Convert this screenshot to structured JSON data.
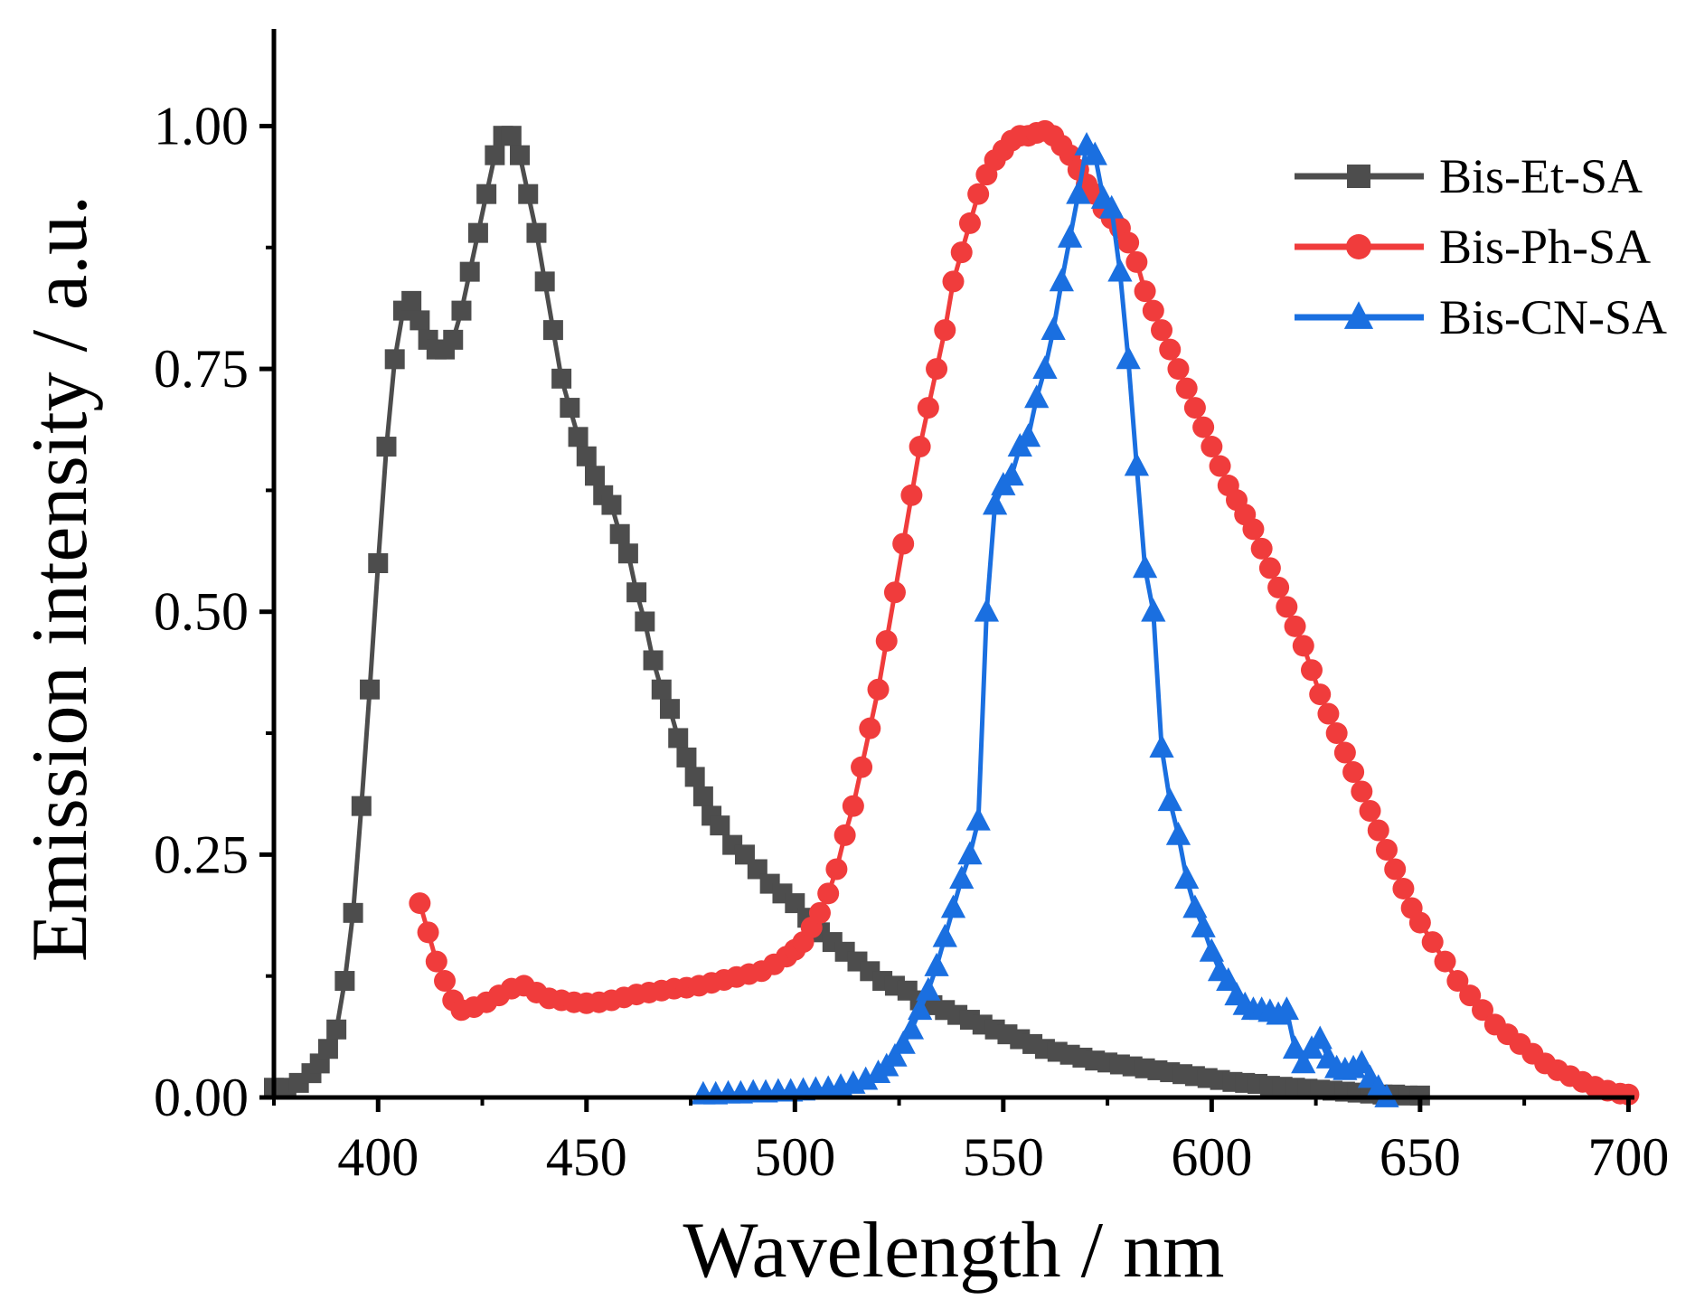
{
  "chart_data": {
    "type": "line",
    "title": "",
    "xlabel": "Wavelength / nm",
    "ylabel": "Emission intensity / a.u.",
    "xlim": [
      375,
      701
    ],
    "ylim": [
      0,
      1.1
    ],
    "xticks": [
      400,
      450,
      500,
      550,
      600,
      650,
      700
    ],
    "xtick_labels": [
      "400",
      "450",
      "500",
      "550",
      "600",
      "650",
      "700"
    ],
    "yticks": [
      0,
      0.25,
      0.5,
      0.75,
      1.0
    ],
    "ytick_labels": [
      "0.00",
      "0.25",
      "0.50",
      "0.75",
      "1.00"
    ],
    "grid": false,
    "legend_position": "top-right",
    "series": [
      {
        "name": "Bis-Et-SA",
        "color": "#4d4d4d",
        "marker": "square",
        "x": [
          375,
          378,
          381,
          384,
          386,
          388,
          390,
          392,
          394,
          396,
          398,
          400,
          402,
          404,
          406,
          408,
          410,
          412,
          414,
          416,
          418,
          420,
          422,
          424,
          426,
          428,
          430,
          432,
          434,
          436,
          438,
          440,
          442,
          444,
          446,
          448,
          450,
          452,
          454,
          456,
          458,
          460,
          462,
          464,
          466,
          468,
          470,
          472,
          474,
          476,
          478,
          480,
          482,
          485,
          488,
          491,
          494,
          497,
          500,
          503,
          506,
          509,
          512,
          515,
          518,
          521,
          524,
          527,
          530,
          533,
          536,
          539,
          542,
          545,
          548,
          551,
          554,
          557,
          560,
          563,
          566,
          569,
          572,
          575,
          578,
          581,
          584,
          587,
          590,
          593,
          596,
          599,
          602,
          605,
          608,
          611,
          614,
          617,
          620,
          623,
          626,
          629,
          632,
          635,
          638,
          641,
          644,
          647,
          650
        ],
        "y": [
          0.01,
          0.01,
          0.015,
          0.025,
          0.035,
          0.05,
          0.07,
          0.12,
          0.19,
          0.3,
          0.42,
          0.55,
          0.67,
          0.76,
          0.81,
          0.82,
          0.8,
          0.78,
          0.77,
          0.77,
          0.78,
          0.81,
          0.85,
          0.89,
          0.93,
          0.97,
          0.99,
          0.99,
          0.97,
          0.93,
          0.89,
          0.84,
          0.79,
          0.74,
          0.71,
          0.68,
          0.66,
          0.64,
          0.62,
          0.61,
          0.58,
          0.56,
          0.52,
          0.49,
          0.45,
          0.42,
          0.4,
          0.37,
          0.35,
          0.33,
          0.31,
          0.29,
          0.28,
          0.26,
          0.25,
          0.235,
          0.22,
          0.21,
          0.2,
          0.185,
          0.17,
          0.16,
          0.15,
          0.14,
          0.13,
          0.12,
          0.115,
          0.11,
          0.1,
          0.095,
          0.09,
          0.085,
          0.08,
          0.075,
          0.07,
          0.065,
          0.06,
          0.055,
          0.05,
          0.047,
          0.044,
          0.041,
          0.038,
          0.036,
          0.034,
          0.032,
          0.03,
          0.028,
          0.026,
          0.024,
          0.022,
          0.02,
          0.018,
          0.016,
          0.015,
          0.014,
          0.012,
          0.011,
          0.01,
          0.009,
          0.008,
          0.007,
          0.006,
          0.005,
          0.004,
          0.003,
          0.003,
          0.002,
          0.002
        ]
      },
      {
        "name": "Bis-Ph-SA",
        "color": "#f03c3c",
        "marker": "circle",
        "x": [
          410,
          412,
          414,
          416,
          418,
          420,
          423,
          426,
          429,
          432,
          435,
          438,
          441,
          444,
          447,
          450,
          453,
          456,
          459,
          462,
          465,
          468,
          471,
          474,
          477,
          480,
          483,
          486,
          489,
          492,
          495,
          498,
          500,
          502,
          504,
          506,
          508,
          510,
          512,
          514,
          516,
          518,
          520,
          522,
          524,
          526,
          528,
          530,
          532,
          534,
          536,
          538,
          540,
          542,
          544,
          546,
          548,
          550,
          552,
          554,
          556,
          558,
          560,
          562,
          564,
          566,
          568,
          570,
          572,
          574,
          576,
          578,
          580,
          582,
          584,
          586,
          588,
          590,
          592,
          594,
          596,
          598,
          600,
          602,
          604,
          606,
          608,
          610,
          612,
          614,
          616,
          618,
          620,
          622,
          624,
          626,
          628,
          630,
          632,
          634,
          636,
          638,
          640,
          642,
          644,
          646,
          648,
          650,
          653,
          656,
          659,
          662,
          665,
          668,
          671,
          674,
          677,
          680,
          683,
          686,
          689,
          692,
          695,
          698,
          700
        ],
        "y": [
          0.2,
          0.17,
          0.14,
          0.12,
          0.1,
          0.09,
          0.093,
          0.098,
          0.105,
          0.112,
          0.115,
          0.108,
          0.102,
          0.1,
          0.098,
          0.097,
          0.098,
          0.1,
          0.103,
          0.106,
          0.108,
          0.11,
          0.112,
          0.113,
          0.115,
          0.118,
          0.121,
          0.124,
          0.127,
          0.13,
          0.137,
          0.145,
          0.152,
          0.16,
          0.175,
          0.19,
          0.21,
          0.235,
          0.27,
          0.3,
          0.34,
          0.38,
          0.42,
          0.47,
          0.52,
          0.57,
          0.62,
          0.67,
          0.71,
          0.75,
          0.79,
          0.84,
          0.87,
          0.9,
          0.93,
          0.95,
          0.965,
          0.975,
          0.985,
          0.99,
          0.99,
          0.993,
          0.995,
          0.99,
          0.98,
          0.97,
          0.955,
          0.94,
          0.93,
          0.915,
          0.905,
          0.895,
          0.88,
          0.86,
          0.83,
          0.81,
          0.79,
          0.77,
          0.75,
          0.73,
          0.71,
          0.69,
          0.67,
          0.65,
          0.63,
          0.615,
          0.6,
          0.585,
          0.565,
          0.545,
          0.525,
          0.505,
          0.485,
          0.465,
          0.44,
          0.415,
          0.395,
          0.375,
          0.355,
          0.335,
          0.315,
          0.295,
          0.275,
          0.255,
          0.235,
          0.215,
          0.195,
          0.18,
          0.16,
          0.14,
          0.12,
          0.105,
          0.09,
          0.075,
          0.065,
          0.055,
          0.045,
          0.035,
          0.028,
          0.022,
          0.016,
          0.011,
          0.007,
          0.004,
          0.003
        ]
      },
      {
        "name": "Bis-CN-SA",
        "color": "#1a6fe0",
        "marker": "triangle",
        "x": [
          478,
          481,
          484,
          487,
          490,
          493,
          496,
          499,
          502,
          505,
          508,
          511,
          514,
          517,
          520,
          522,
          524,
          526,
          528,
          530,
          532,
          534,
          536,
          538,
          540,
          542,
          544,
          546,
          548,
          550,
          552,
          554,
          556,
          558,
          560,
          562,
          564,
          566,
          568,
          570,
          572,
          574,
          576,
          578,
          580,
          582,
          584,
          586,
          588,
          590,
          592,
          594,
          596,
          598,
          600,
          602,
          604,
          606,
          608,
          610,
          612,
          614,
          616,
          618,
          620,
          622,
          624,
          626,
          628,
          630,
          632,
          634,
          636,
          638,
          640,
          642
        ],
        "y": [
          0.003,
          0.003,
          0.004,
          0.004,
          0.005,
          0.005,
          0.006,
          0.006,
          0.007,
          0.008,
          0.009,
          0.011,
          0.014,
          0.018,
          0.025,
          0.032,
          0.042,
          0.055,
          0.07,
          0.09,
          0.11,
          0.135,
          0.165,
          0.195,
          0.225,
          0.25,
          0.285,
          0.5,
          0.61,
          0.63,
          0.64,
          0.67,
          0.68,
          0.72,
          0.75,
          0.79,
          0.84,
          0.885,
          0.93,
          0.98,
          0.97,
          0.925,
          0.915,
          0.85,
          0.76,
          0.65,
          0.545,
          0.5,
          0.36,
          0.305,
          0.27,
          0.225,
          0.195,
          0.175,
          0.15,
          0.13,
          0.12,
          0.105,
          0.095,
          0.09,
          0.09,
          0.088,
          0.085,
          0.09,
          0.05,
          0.035,
          0.05,
          0.06,
          0.04,
          0.03,
          0.028,
          0.03,
          0.035,
          0.02,
          0.01,
          0.0
        ]
      }
    ]
  }
}
